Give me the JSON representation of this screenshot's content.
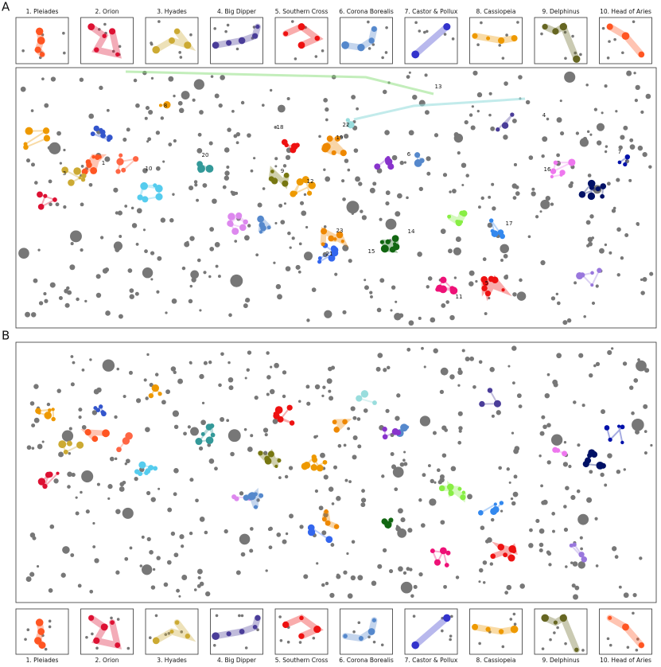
{
  "panels": [
    {
      "label": "A",
      "thumbnails": [
        "1. Pleiades",
        "2. Orion",
        "3. Hyades",
        "4. Big Dipper",
        "5. Southern Cross",
        "6. Corona Borealis",
        "7. Castor & Pollux",
        "8. Cassiopeia",
        "9. Delphinus",
        "10. Head of Aries"
      ],
      "annotations": [
        "1",
        "3",
        "4",
        "5",
        "6",
        "7",
        "8",
        "9",
        "10",
        "11",
        "12",
        "13",
        "14",
        "15",
        "16",
        "17",
        "18",
        "19",
        "20",
        "21",
        "22",
        "23"
      ]
    },
    {
      "label": "B",
      "thumbnails": [
        "1. Pleiades",
        "2. Orion",
        "3. Hyades",
        "4. Big Dipper",
        "5. Southern Cross",
        "6. Corona Borealis",
        "7. Castor & Pollux",
        "8. Cassiopeia",
        "9. Delphinus",
        "10. Head of Aries"
      ]
    }
  ]
}
